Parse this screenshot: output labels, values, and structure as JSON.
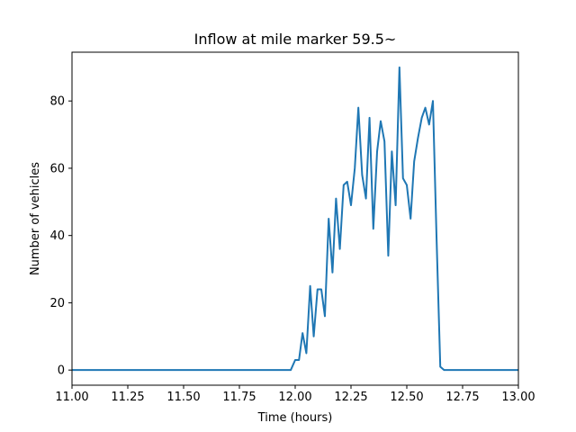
{
  "chart_data": {
    "type": "line",
    "title": "Inflow at mile marker 59.5~",
    "xlabel": "Time (hours)",
    "ylabel": "Number of vehicles",
    "xlim": [
      11.0,
      13.0
    ],
    "ylim": [
      -4.5,
      94.5
    ],
    "grid": false,
    "x_ticks": [
      11.0,
      11.25,
      11.5,
      11.75,
      12.0,
      12.25,
      12.5,
      12.75,
      13.0
    ],
    "x_tick_labels": [
      "11.00",
      "11.25",
      "11.50",
      "11.75",
      "12.00",
      "12.25",
      "12.50",
      "12.75",
      "13.00"
    ],
    "y_ticks": [
      0,
      20,
      40,
      60,
      80
    ],
    "y_tick_labels": [
      "0",
      "20",
      "40",
      "60",
      "80"
    ],
    "series": [
      {
        "color": "#1f77b4",
        "x": [
          11.0,
          11.98,
          12.0,
          12.017,
          12.033,
          12.05,
          12.067,
          12.083,
          12.1,
          12.117,
          12.133,
          12.15,
          12.167,
          12.183,
          12.2,
          12.217,
          12.233,
          12.25,
          12.267,
          12.283,
          12.3,
          12.317,
          12.333,
          12.35,
          12.367,
          12.383,
          12.4,
          12.417,
          12.433,
          12.45,
          12.467,
          12.483,
          12.5,
          12.517,
          12.533,
          12.55,
          12.567,
          12.583,
          12.6,
          12.617,
          12.633,
          12.65,
          12.667,
          12.7,
          13.0
        ],
        "y": [
          0,
          0,
          3,
          3,
          11,
          5,
          25,
          10,
          24,
          24,
          16,
          45,
          29,
          51,
          36,
          55,
          56,
          49,
          60,
          78,
          58,
          51,
          75,
          42,
          65,
          74,
          68,
          34,
          65,
          49,
          90,
          57,
          55,
          45,
          62,
          69,
          75,
          78,
          73,
          80,
          40,
          1,
          0,
          0,
          0
        ]
      }
    ]
  }
}
